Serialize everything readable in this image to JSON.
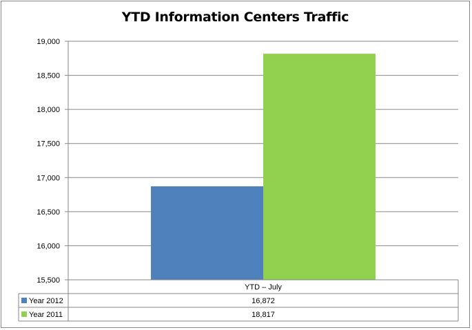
{
  "chart_data": {
    "type": "bar",
    "title": "YTD Information Centers Traffic",
    "categories": [
      "YTD – July"
    ],
    "series": [
      {
        "name": "Year 2012",
        "values": [
          16872
        ],
        "value_labels": [
          "16,872"
        ],
        "color": "#4F81BD"
      },
      {
        "name": "Year 2011",
        "values": [
          18817
        ],
        "value_labels": [
          "18,817"
        ],
        "color": "#92D050"
      }
    ],
    "ylim": [
      15500,
      19000
    ],
    "y_ticks": [
      "15,500",
      "16,000",
      "16,500",
      "17,000",
      "17,500",
      "18,000",
      "18,500",
      "19,000"
    ],
    "grid": true,
    "legend": "data-table"
  }
}
